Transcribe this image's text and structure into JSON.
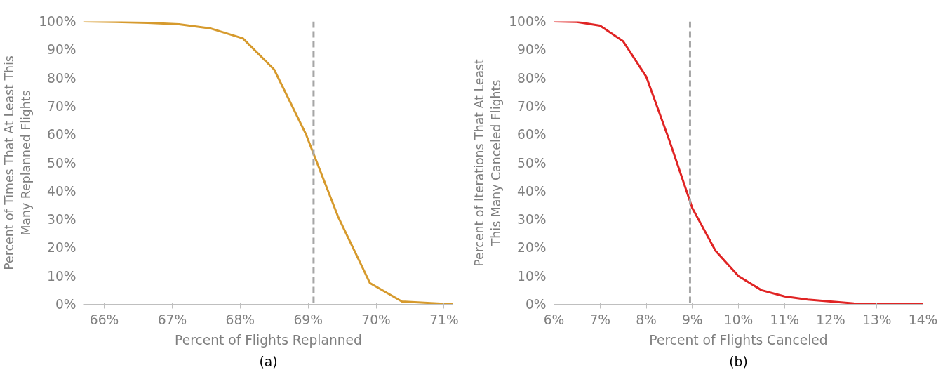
{
  "chart_data": [
    {
      "type": "line",
      "xlabel": "Percent of Flights Replanned",
      "ylabel": "Percent of Times That At Least This Many Replanned Flights",
      "annotations": [
        "(a)"
      ],
      "x": [
        65.7,
        66.17,
        66.64,
        67.1,
        67.57,
        68.04,
        68.5,
        68.97,
        69.44,
        69.91,
        70.38,
        71.13
      ],
      "series": [
        {
          "color": "#d69a2d",
          "values": [
            100,
            99.8,
            99.5,
            99,
            97.5,
            94,
            83,
            60,
            31,
            7.5,
            1,
            0
          ]
        }
      ],
      "xlim": [
        65.7,
        71.13
      ],
      "ylim": [
        0,
        100
      ],
      "xticks": [
        {
          "value": 66,
          "label": "66%"
        },
        {
          "value": 67,
          "label": "67%"
        },
        {
          "value": 68,
          "label": "68%"
        },
        {
          "value": 69,
          "label": "69%"
        },
        {
          "value": 70,
          "label": "70%"
        },
        {
          "value": 71,
          "label": "71%"
        }
      ],
      "yticks": [
        {
          "value": 0,
          "label": "0%"
        },
        {
          "value": 10,
          "label": "10%"
        },
        {
          "value": 20,
          "label": "20%"
        },
        {
          "value": 30,
          "label": "30%"
        },
        {
          "value": 40,
          "label": "40%"
        },
        {
          "value": 50,
          "label": "50%"
        },
        {
          "value": 60,
          "label": "60%"
        },
        {
          "value": 70,
          "label": "70%"
        },
        {
          "value": 80,
          "label": "80%"
        },
        {
          "value": 90,
          "label": "90%"
        },
        {
          "value": 100,
          "label": "100%"
        }
      ],
      "ref_lines": [
        {
          "axis": "x",
          "value": 69.08,
          "color": "#a6a6a6",
          "line_style": "dashed"
        }
      ],
      "grid": false,
      "marker": "none",
      "line_style": "solid"
    },
    {
      "type": "line",
      "xlabel": "Percent of Flights Canceled",
      "ylabel": "Percent of Iterations That At Least This Many Canceled Flights",
      "annotations": [
        "(b)"
      ],
      "x": [
        6,
        6.5,
        7,
        7.5,
        8,
        8.5,
        9,
        9.5,
        10,
        10.5,
        11,
        11.5,
        12,
        12.5,
        13,
        13.5,
        14
      ],
      "series": [
        {
          "color": "#e02424",
          "values": [
            100,
            99.8,
            98.5,
            93,
            80.5,
            58,
            34,
            19,
            10,
            5,
            2.8,
            1.7,
            1,
            0.3,
            0.1,
            0,
            0
          ]
        }
      ],
      "xlim": [
        6,
        14
      ],
      "ylim": [
        0,
        100
      ],
      "xticks": [
        {
          "value": 6,
          "label": "6%"
        },
        {
          "value": 7,
          "label": "7%"
        },
        {
          "value": 8,
          "label": "8%"
        },
        {
          "value": 9,
          "label": "9%"
        },
        {
          "value": 10,
          "label": "10%"
        },
        {
          "value": 11,
          "label": "11%"
        },
        {
          "value": 12,
          "label": "12%"
        },
        {
          "value": 13,
          "label": "13%"
        },
        {
          "value": 14,
          "label": "14%"
        }
      ],
      "yticks": [
        {
          "value": 0,
          "label": "0%"
        },
        {
          "value": 10,
          "label": "10%"
        },
        {
          "value": 20,
          "label": "20%"
        },
        {
          "value": 30,
          "label": "30%"
        },
        {
          "value": 40,
          "label": "40%"
        },
        {
          "value": 50,
          "label": "50%"
        },
        {
          "value": 60,
          "label": "60%"
        },
        {
          "value": 70,
          "label": "70%"
        },
        {
          "value": 80,
          "label": "80%"
        },
        {
          "value": 90,
          "label": "90%"
        },
        {
          "value": 100,
          "label": "100%"
        }
      ],
      "ref_lines": [
        {
          "axis": "x",
          "value": 8.95,
          "color": "#a6a6a6",
          "line_style": "dashed"
        }
      ],
      "grid": false,
      "marker": "none",
      "line_style": "solid"
    }
  ]
}
